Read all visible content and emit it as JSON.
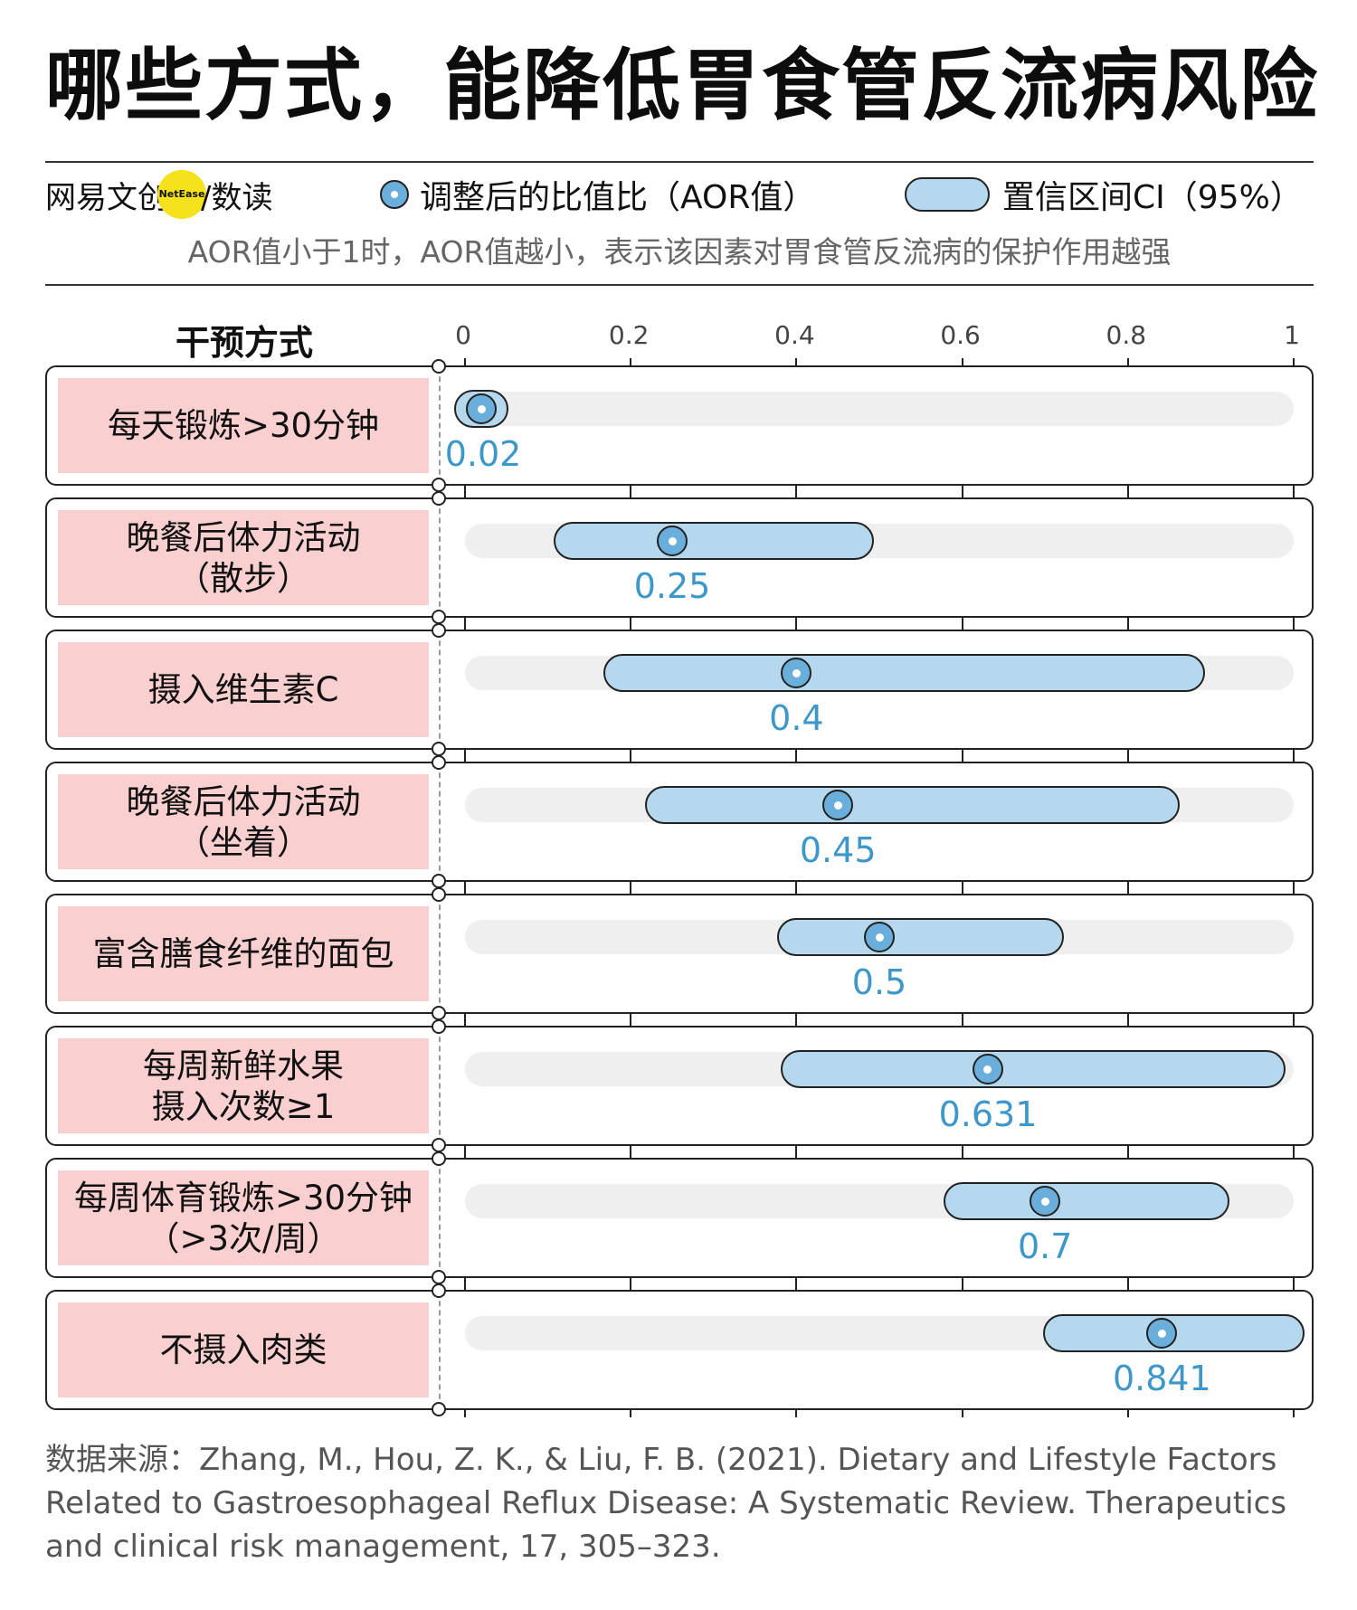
{
  "title": "哪些方式，能降低胃食管反流病风险",
  "brand": {
    "name": "网易文创",
    "badge": "NetEase",
    "suffix": "/数读"
  },
  "legend": {
    "point": "调整后的比值比（AOR值）",
    "ci": "置信区间CI（95%）"
  },
  "subtitle": "AOR值小于1时，AOR值越小，表示该因素对胃食管反流病的保护作用越强",
  "colors": {
    "label_bg": "#f9cfd0",
    "ci_fill": "#b6d8ef",
    "point_fill": "#6aaedc",
    "value_text": "#3d97c9",
    "track": "#efefef"
  },
  "chart_data": {
    "type": "forest",
    "category_header": "干预方式",
    "x_ticks": [
      "0",
      "0.2",
      "0.4",
      "0.6",
      "0.8",
      "1"
    ],
    "xlim": [
      0,
      1
    ],
    "rows": [
      {
        "label": "每天锻炼>30分钟",
        "aor": 0.02,
        "value_label": "0.02",
        "ci": [
          0.01,
          0.03
        ]
      },
      {
        "label": "晚餐后体力活动\n（散步）",
        "aor": 0.25,
        "value_label": "0.25",
        "ci": [
          0.13,
          0.47
        ]
      },
      {
        "label": "摄入维生素C",
        "aor": 0.4,
        "value_label": "0.4",
        "ci": [
          0.19,
          0.87
        ]
      },
      {
        "label": "晚餐后体力活动\n（坐着）",
        "aor": 0.45,
        "value_label": "0.45",
        "ci": [
          0.24,
          0.84
        ]
      },
      {
        "label": "富含膳食纤维的面包",
        "aor": 0.5,
        "value_label": "0.5",
        "ci": [
          0.4,
          0.7
        ]
      },
      {
        "label": "每周新鲜水果\n摄入次数≥1",
        "aor": 0.631,
        "value_label": "0.631",
        "ci": [
          0.404,
          0.967
        ]
      },
      {
        "label": "每周体育锻炼>30分钟\n（>3次/周）",
        "aor": 0.7,
        "value_label": "0.7",
        "ci": [
          0.6,
          0.9
        ]
      },
      {
        "label": "不摄入肉类",
        "aor": 0.841,
        "value_label": "0.841",
        "ci": [
          0.72,
          0.99
        ]
      }
    ]
  },
  "source": "数据来源：Zhang, M., Hou, Z. K., & Liu, F. B. (2021). Dietary and Lifestyle Factors Related to Gastroesophageal Reflux Disease: A Systematic Review. Therapeutics and clinical risk management, 17, 305–323."
}
